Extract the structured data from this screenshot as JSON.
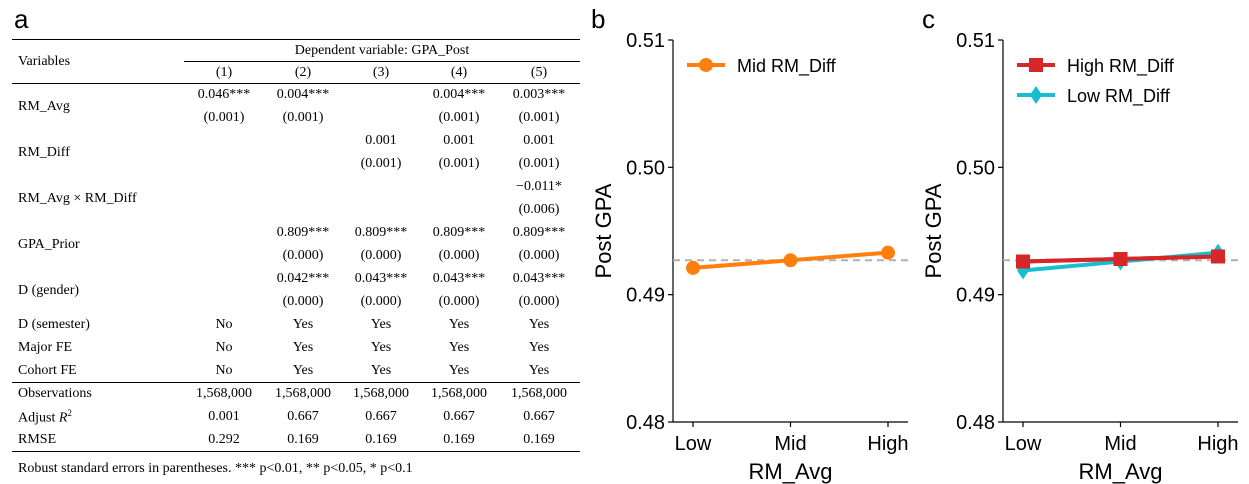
{
  "panels": {
    "a": "a",
    "b": "b",
    "c": "c"
  },
  "table": {
    "variables_label": "Variables",
    "dep_var_label": "Dependent variable: GPA_Post",
    "columns": [
      "(1)",
      "(2)",
      "(3)",
      "(4)",
      "(5)"
    ],
    "rows": [
      {
        "label": "RM_Avg",
        "coef": [
          "0.046***",
          "0.004***",
          "",
          "0.004***",
          "0.003***"
        ],
        "se": [
          "(0.001)",
          "(0.001)",
          "",
          "(0.001)",
          "(0.001)"
        ]
      },
      {
        "label": "RM_Diff",
        "coef": [
          "",
          "",
          "0.001",
          "0.001",
          "0.001"
        ],
        "se": [
          "",
          "",
          "(0.001)",
          "(0.001)",
          "(0.001)"
        ]
      },
      {
        "label": "RM_Avg × RM_Diff",
        "coef": [
          "",
          "",
          "",
          "",
          "−0.011*"
        ],
        "se": [
          "",
          "",
          "",
          "",
          "(0.006)"
        ]
      },
      {
        "label": "GPA_Prior",
        "coef": [
          "",
          "0.809***",
          "0.809***",
          "0.809***",
          "0.809***"
        ],
        "se": [
          "",
          "(0.000)",
          "(0.000)",
          "(0.000)",
          "(0.000)"
        ]
      },
      {
        "label": "D (gender)",
        "coef": [
          "",
          "0.042***",
          "0.043***",
          "0.043***",
          "0.043***"
        ],
        "se": [
          "",
          "(0.000)",
          "(0.000)",
          "(0.000)",
          "(0.000)"
        ]
      }
    ],
    "controls": [
      {
        "label": "D (semester)",
        "values": [
          "No",
          "Yes",
          "Yes",
          "Yes",
          "Yes"
        ]
      },
      {
        "label": "Major FE",
        "values": [
          "No",
          "Yes",
          "Yes",
          "Yes",
          "Yes"
        ]
      },
      {
        "label": "Cohort FE",
        "values": [
          "No",
          "Yes",
          "Yes",
          "Yes",
          "Yes"
        ]
      }
    ],
    "stats": [
      {
        "label": "Observations",
        "values": [
          "1,568,000",
          "1,568,000",
          "1,568,000",
          "1,568,000",
          "1,568,000"
        ]
      },
      {
        "label": "Adjust R",
        "sup": "2",
        "values": [
          "0.001",
          "0.667",
          "0.667",
          "0.667",
          "0.667"
        ]
      },
      {
        "label": "RMSE",
        "values": [
          "0.292",
          "0.169",
          "0.169",
          "0.169",
          "0.169"
        ]
      }
    ],
    "note": "Robust standard errors in parentheses. *** p<0.01, ** p<0.05, * p<0.1"
  },
  "chart_data": [
    {
      "panel": "b",
      "type": "line",
      "categories": [
        "Low",
        "Mid",
        "High"
      ],
      "xlabel": "RM_Avg",
      "ylabel": "Post GPA",
      "ylim": [
        0.48,
        0.51
      ],
      "yticks": [
        "0.48",
        "0.49",
        "0.50",
        "0.51"
      ],
      "reference_line": 0.4927,
      "reference_color": "#b0b0b0",
      "legend_position": "top-left",
      "series": [
        {
          "name": "Mid RM_Diff",
          "values": [
            0.4921,
            0.4927,
            0.4933
          ],
          "color": "#ff7f0e",
          "marker": "circle"
        }
      ]
    },
    {
      "panel": "c",
      "type": "line",
      "categories": [
        "Low",
        "Mid",
        "High"
      ],
      "xlabel": "RM_Avg",
      "ylabel": "Post GPA",
      "ylim": [
        0.48,
        0.51
      ],
      "yticks": [
        "0.48",
        "0.49",
        "0.50",
        "0.51"
      ],
      "reference_line": 0.4927,
      "reference_color": "#b0b0b0",
      "legend_position": "top-left",
      "series": [
        {
          "name": "High RM_Diff",
          "values": [
            0.4926,
            0.4928,
            0.493
          ],
          "color": "#d62728",
          "marker": "square"
        },
        {
          "name": "Low RM_Diff",
          "values": [
            0.4919,
            0.4926,
            0.4933
          ],
          "color": "#17becf",
          "marker": "diamond"
        }
      ]
    }
  ]
}
